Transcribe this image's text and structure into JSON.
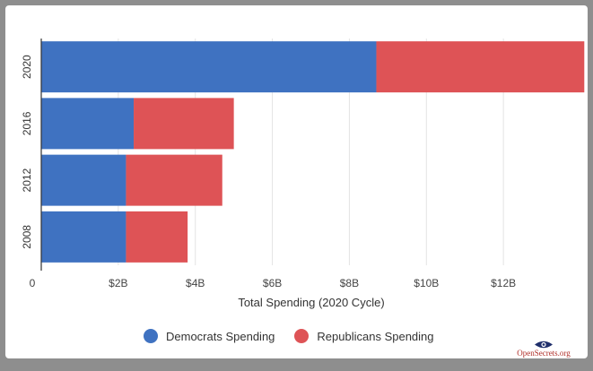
{
  "chart_data": {
    "type": "bar",
    "orientation": "horizontal",
    "stacked": true,
    "categories": [
      "2020",
      "2016",
      "2012",
      "2008"
    ],
    "series": [
      {
        "name": "Democrats Spending",
        "color": "#3f72c1",
        "values": [
          8.7,
          2.4,
          2.2,
          2.2
        ]
      },
      {
        "name": "Republicans Spending",
        "color": "#de5356",
        "values": [
          5.4,
          2.6,
          2.5,
          1.6
        ]
      }
    ],
    "xlabel": "Total Spending (2020 Cycle)",
    "xlim": [
      0,
      14
    ],
    "xticks": [
      0,
      2,
      4,
      6,
      8,
      10,
      12
    ],
    "xtick_labels": [
      "0",
      "$2B",
      "$4B",
      "$6B",
      "$8B",
      "$10B",
      "$12B"
    ],
    "grid": true,
    "legend_position": "bottom"
  },
  "brand": {
    "name": "OpenSecrets.org",
    "icon": "eye-icon"
  }
}
